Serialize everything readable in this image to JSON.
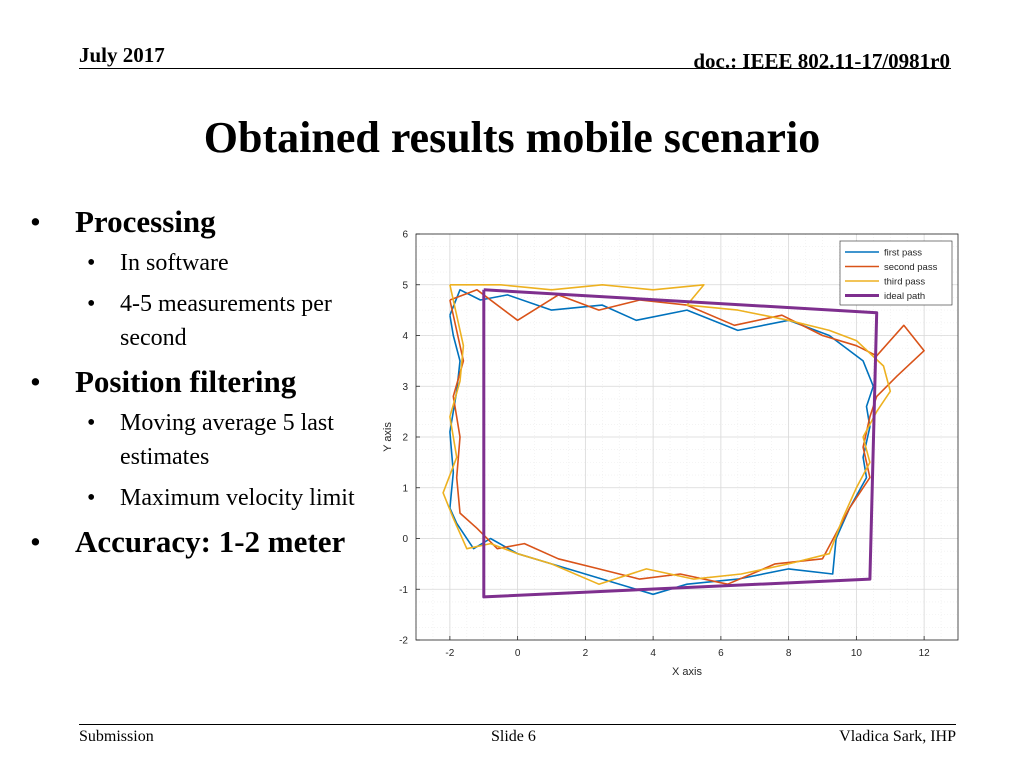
{
  "header": {
    "date": "July 2017",
    "doc": "doc.: IEEE 802.11-17/0981r0"
  },
  "title": "Obtained results mobile scenario",
  "bullets": [
    {
      "level": 1,
      "text": "Processing"
    },
    {
      "level": 2,
      "text": "In software"
    },
    {
      "level": 2,
      "text": "4-5 measurements per second"
    },
    {
      "level": 1,
      "text": "Position filtering"
    },
    {
      "level": 2,
      "text": "Moving average 5 last estimates"
    },
    {
      "level": 2,
      "text": "Maximum velocity limit"
    },
    {
      "level": 1,
      "text": "Accuracy: 1-2 meter"
    }
  ],
  "bullet_glyph": "•",
  "chart_data": {
    "type": "line",
    "title": "",
    "xlabel": "X axis",
    "ylabel": "Y axis",
    "xlim": [
      -3,
      13
    ],
    "ylim": [
      -2,
      6
    ],
    "xticks": [
      -2,
      0,
      2,
      4,
      6,
      8,
      10,
      12
    ],
    "yticks": [
      -2,
      -1,
      0,
      1,
      2,
      3,
      4,
      5,
      6
    ],
    "grid": true,
    "legend_position": "top-right",
    "series": [
      {
        "name": "first pass",
        "color": "#0072BD",
        "x": [
          -2.0,
          -1.7,
          -1.1,
          -0.3,
          1.0,
          2.5,
          3.5,
          5.0,
          6.5,
          8.0,
          9.2,
          10.2,
          10.5,
          10.3,
          10.4,
          10.2,
          10.3,
          9.8,
          9.4,
          9.3,
          8.0,
          6.5,
          5.0,
          4.0,
          2.5,
          1.0,
          0.0,
          -0.8,
          -1.3,
          -1.8,
          -2.0,
          -1.9,
          -2.0,
          -1.8,
          -1.7,
          -1.9,
          -2.0
        ],
        "y": [
          4.4,
          4.9,
          4.7,
          4.8,
          4.5,
          4.6,
          4.3,
          4.5,
          4.1,
          4.3,
          4.0,
          3.5,
          3.0,
          2.6,
          2.2,
          1.6,
          1.2,
          0.6,
          0.0,
          -0.7,
          -0.6,
          -0.8,
          -0.9,
          -1.1,
          -0.8,
          -0.5,
          -0.3,
          0.0,
          -0.2,
          0.3,
          0.6,
          1.3,
          2.1,
          2.9,
          3.5,
          4.0,
          4.4
        ]
      },
      {
        "name": "second pass",
        "color": "#D95319",
        "x": [
          -2.0,
          -1.2,
          0.0,
          1.2,
          2.4,
          3.6,
          5.0,
          6.4,
          7.8,
          9.0,
          10.0,
          10.6,
          11.4,
          12.0,
          11.2,
          10.6,
          10.4,
          10.2,
          10.4,
          9.8,
          9.4,
          9.0,
          7.6,
          6.2,
          4.8,
          3.6,
          2.4,
          1.2,
          0.2,
          -0.6,
          -1.2,
          -1.7,
          -1.8,
          -1.7,
          -1.9,
          -1.6,
          -2.0
        ],
        "y": [
          4.7,
          4.9,
          4.3,
          4.8,
          4.5,
          4.7,
          4.6,
          4.2,
          4.4,
          4.0,
          3.8,
          3.6,
          4.2,
          3.7,
          3.2,
          2.8,
          2.4,
          1.8,
          1.2,
          0.6,
          0.1,
          -0.4,
          -0.5,
          -0.9,
          -0.7,
          -0.8,
          -0.6,
          -0.4,
          -0.1,
          -0.2,
          0.2,
          0.5,
          1.2,
          2.0,
          2.8,
          3.5,
          4.7
        ]
      },
      {
        "name": "third pass",
        "color": "#EDB120",
        "x": [
          -2.0,
          -0.5,
          1.0,
          2.5,
          4.0,
          5.5,
          5.0,
          6.5,
          8.0,
          9.2,
          10.0,
          10.8,
          11.0,
          10.6,
          10.2,
          10.4,
          10.0,
          9.6,
          9.2,
          8.0,
          6.6,
          5.2,
          3.8,
          2.4,
          1.0,
          0.0,
          -0.8,
          -1.5,
          -1.9,
          -2.2,
          -1.8,
          -2.0,
          -1.7,
          -1.6,
          -2.0
        ],
        "y": [
          5.0,
          5.0,
          4.9,
          5.0,
          4.9,
          5.0,
          4.6,
          4.5,
          4.3,
          4.1,
          3.9,
          3.4,
          2.9,
          2.5,
          2.0,
          1.5,
          1.0,
          0.4,
          -0.3,
          -0.5,
          -0.7,
          -0.8,
          -0.6,
          -0.9,
          -0.5,
          -0.3,
          -0.1,
          -0.2,
          0.4,
          0.9,
          1.6,
          2.4,
          3.1,
          3.8,
          5.0
        ]
      },
      {
        "name": "ideal path",
        "color": "#7E2F8E",
        "x": [
          -1.0,
          10.6,
          10.4,
          -1.0,
          -1.0
        ],
        "y": [
          4.9,
          4.45,
          -0.8,
          -1.15,
          4.9
        ]
      }
    ]
  },
  "footer": {
    "left": "Submission",
    "center": "Slide 6",
    "right": "Vladica Sark, IHP"
  }
}
